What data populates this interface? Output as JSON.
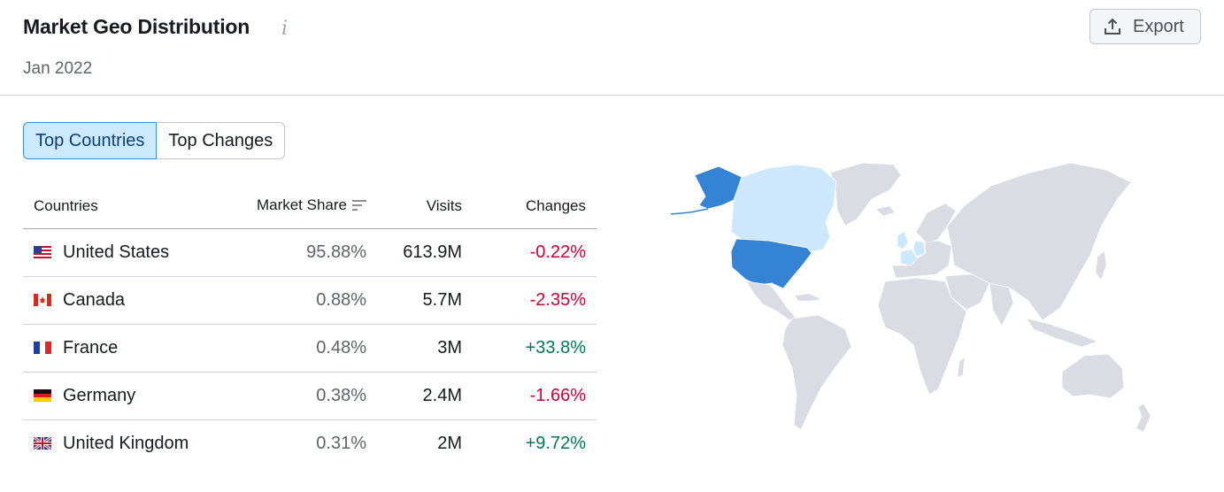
{
  "header": {
    "title": "Market Geo Distribution",
    "info_icon": "info-icon",
    "subtitle": "Jan 2022",
    "export_label": "Export",
    "export_icon": "upload-icon"
  },
  "tabs": [
    {
      "label": "Top Countries",
      "active": true
    },
    {
      "label": "Top Changes",
      "active": false
    }
  ],
  "table": {
    "columns": {
      "countries": "Countries",
      "market_share": "Market Share",
      "visits": "Visits",
      "changes": "Changes"
    },
    "sort_icon": "sort-descending-icon",
    "rows": [
      {
        "flag": "us-flag-icon",
        "country": "United States",
        "market_share": "95.88%",
        "visits": "613.9M",
        "change": "-0.22%",
        "trend": "negative"
      },
      {
        "flag": "ca-flag-icon",
        "country": "Canada",
        "market_share": "0.88%",
        "visits": "5.7M",
        "change": "-2.35%",
        "trend": "negative"
      },
      {
        "flag": "fr-flag-icon",
        "country": "France",
        "market_share": "0.48%",
        "visits": "3M",
        "change": "+33.8%",
        "trend": "positive"
      },
      {
        "flag": "de-flag-icon",
        "country": "Germany",
        "market_share": "0.38%",
        "visits": "2.4M",
        "change": "-1.66%",
        "trend": "negative"
      },
      {
        "flag": "gb-flag-icon",
        "country": "United Kingdom",
        "market_share": "0.31%",
        "visits": "2M",
        "change": "+9.72%",
        "trend": "positive"
      }
    ]
  },
  "map": {
    "highlight_strong": "United States",
    "highlight_light": [
      "Canada",
      "France",
      "Germany",
      "United Kingdom"
    ],
    "colors": {
      "strong": "#3583d4",
      "light": "#cde8fd",
      "base": "#dadce4",
      "negative": "#cc0033",
      "positive": "#007a52",
      "active_tab": "#cde9fd"
    }
  }
}
